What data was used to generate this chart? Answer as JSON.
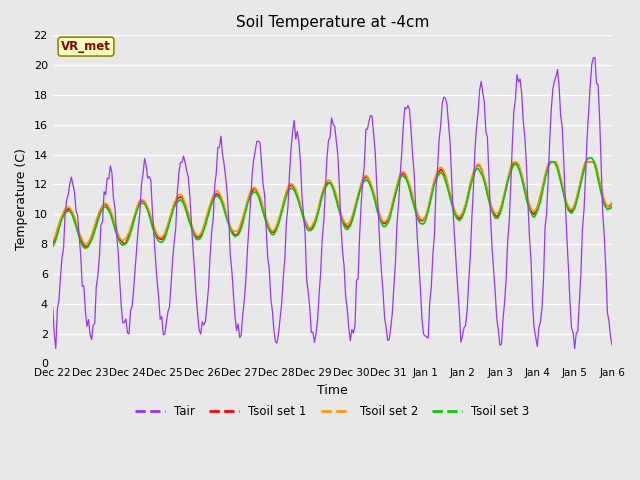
{
  "title": "Soil Temperature at -4cm",
  "xlabel": "Time",
  "ylabel": "Temperature (C)",
  "ylim": [
    0,
    22
  ],
  "yticks": [
    0,
    2,
    4,
    6,
    8,
    10,
    12,
    14,
    16,
    18,
    20,
    22
  ],
  "xtick_labels": [
    "Dec 22",
    "Dec 23",
    "Dec 24",
    "Dec 25",
    "Dec 26",
    "Dec 27",
    "Dec 28",
    "Dec 29",
    "Dec 30",
    "Dec 31",
    "Jan 1",
    "Jan 2",
    "Jan 3",
    "Jan 4",
    "Jan 5",
    "Jan 6"
  ],
  "annotation_text": "VR_met",
  "annotation_color": "#8B0000",
  "annotation_bg": "#FFFFC0",
  "annotation_edge": "#8B8B00",
  "line_colors": {
    "Tair": "#9933FF",
    "Tsoil1": "#FF0000",
    "Tsoil2": "#FF9900",
    "Tsoil3": "#00CC00"
  },
  "legend_labels": [
    "Tair",
    "Tsoil set 1",
    "Tsoil set 2",
    "Tsoil set 3"
  ],
  "fig_facecolor": "#E8E8E8",
  "ax_facecolor": "#E8E8E8",
  "grid_color": "#FFFFFF"
}
